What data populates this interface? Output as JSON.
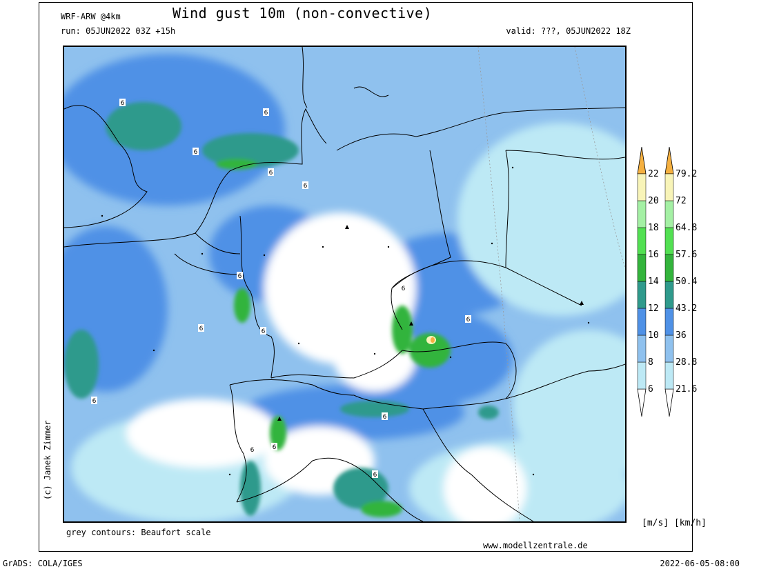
{
  "header": {
    "model": "WRF-ARW @4km",
    "title": "Wind gust 10m (non-convective)",
    "run": "run: 05JUN2022 03Z +15h",
    "valid": "valid: ???, 05JUN2022 18Z"
  },
  "footer": {
    "credit": "(c) Janek Zimmer",
    "contours_note": "grey contours: Beaufort scale",
    "website": "www.modellzentrale.de",
    "units": "[m/s] [km/h]",
    "grads": "GrADS: COLA/IGES",
    "timestamp": "2022-06-05-08:00"
  },
  "legend": {
    "ms_labels": [
      "6",
      "8",
      "10",
      "12",
      "14",
      "16",
      "18",
      "20",
      "22"
    ],
    "kmh_labels": [
      "21.6",
      "28.8",
      "36",
      "43.2",
      "50.4",
      "57.6",
      "64.8",
      "72",
      "79.2"
    ],
    "colors": [
      "#ffffff",
      "#bde9f5",
      "#8fc1ee",
      "#4f91e6",
      "#2f9a8c",
      "#33b43c",
      "#52e052",
      "#a4f0a4",
      "#cff2b8",
      "#f8f4b8",
      "#f5b040"
    ]
  },
  "map": {
    "beaufort_label": "6",
    "colors": {
      "white": "#ffffff",
      "light": "#bde9f5",
      "mid": "#8fc1ee",
      "blue": "#4f91e6",
      "teal": "#2f9a8c",
      "green": "#33b43c",
      "yellow": "#f8f4b8",
      "orange": "#f5b040"
    }
  }
}
